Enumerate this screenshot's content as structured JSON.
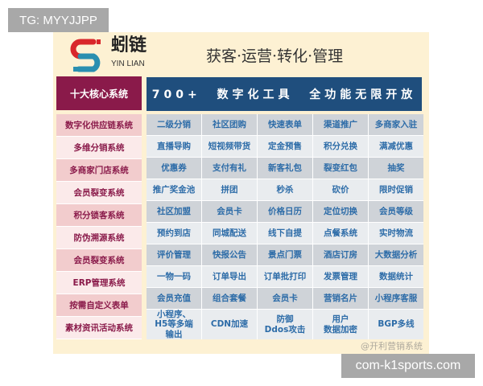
{
  "overlay": {
    "top_tag": "TG: MYYJJPP",
    "bottom_tag": "com-k1sports.com"
  },
  "brand": {
    "name_cn": "蚓链",
    "name_en": "YIN LIAN",
    "slogan": "获客·运营·转化·管理",
    "colors": {
      "red": "#d9262b",
      "teal": "#2a8fb0",
      "magenta": "#8a1a4a",
      "blue": "#1f4e7d"
    }
  },
  "header": {
    "core_title": "十大核心系统",
    "banner": "700+  数字化工具  全功能无限开放"
  },
  "systems": [
    "数字化供应链系统",
    "多维分销系统",
    "多商家门店系统",
    "会员裂变系统",
    "积分锁客系统",
    "防伪溯源系统",
    "会员裂变系统",
    "ERP管理系统",
    "按需自定义表单",
    "素材资讯活动系统"
  ],
  "tools": [
    [
      "二级分销",
      "社区团购",
      "快速表单",
      "渠道推广",
      "多商家入驻"
    ],
    [
      "直播导购",
      "短视频带货",
      "定金预售",
      "积分兑换",
      "满减优惠"
    ],
    [
      "优惠券",
      "支付有礼",
      "新客礼包",
      "裂变红包",
      "抽奖"
    ],
    [
      "推广奖金池",
      "拼团",
      "秒杀",
      "砍价",
      "限时促销"
    ],
    [
      "社区加盟",
      "会员卡",
      "价格日历",
      "定位切换",
      "会员等级"
    ],
    [
      "预约到店",
      "同城配送",
      "线下自提",
      "点餐系统",
      "实时物流"
    ],
    [
      "评价管理",
      "快报公告",
      "景点门票",
      "酒店订房",
      "大数据分析"
    ],
    [
      "一物一码",
      "订单导出",
      "订单批打印",
      "发票管理",
      "数据统计"
    ],
    [
      "会员充值",
      "组合套餐",
      "会员卡",
      "营销名片",
      "小程序客服"
    ],
    [
      "小程序、\nH5等多端\n输出",
      "CDN加速",
      "防御\nDdos攻击",
      "用户\n数据加密",
      "BGP多线"
    ]
  ],
  "watermark": "@开利营销系统"
}
